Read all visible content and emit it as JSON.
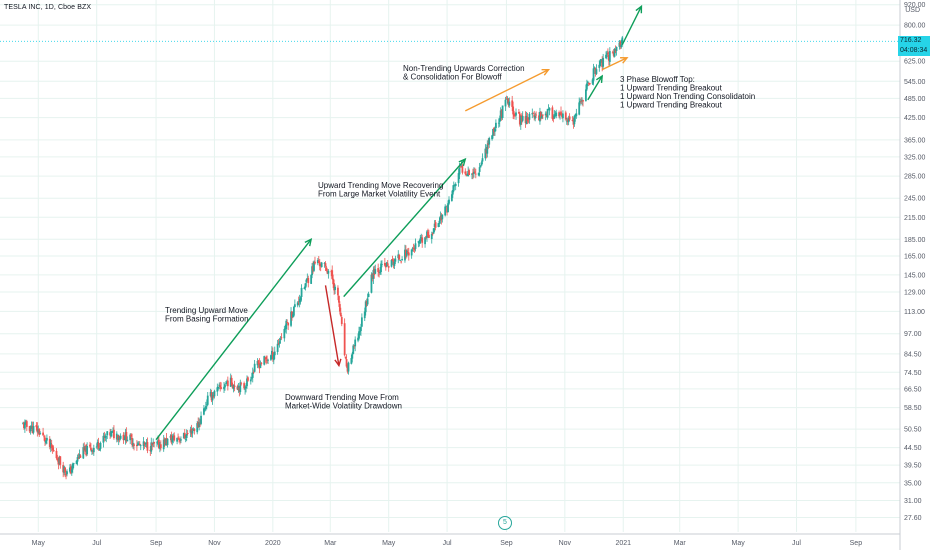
{
  "header": {
    "title": "TESLA INC, 1D, Cboe BZX",
    "currency": "USD"
  },
  "price_tags": {
    "last_price": "716.32",
    "countdown": "04:08:34"
  },
  "event_marker": {
    "label": "5"
  },
  "colors": {
    "up": "#26a69a",
    "down": "#ef5350",
    "green_arrow": "#0e9e5a",
    "red_arrow": "#c62828",
    "orange_arrow": "#f59b2f",
    "grid": "#e6f3ef",
    "tag": "#26d4e8"
  },
  "chart_data": {
    "type": "candlestick",
    "y_scale": "log",
    "ylim": [
      25,
      950
    ],
    "y_ticks": [
      "920.00",
      "800.00",
      "716.32",
      "625.00",
      "545.00",
      "485.00",
      "425.00",
      "365.00",
      "325.00",
      "285.00",
      "245.00",
      "215.00",
      "185.00",
      "165.00",
      "145.00",
      "129.00",
      "113.00",
      "97.00",
      "84.50",
      "74.50",
      "66.50",
      "58.50",
      "50.50",
      "44.50",
      "39.50",
      "35.00",
      "31.00",
      "27.60"
    ],
    "x_ticks": [
      "May",
      "Jul",
      "Sep",
      "Nov",
      "2020",
      "Mar",
      "May",
      "Jul",
      "Sep",
      "Nov",
      "2021",
      "Mar",
      "May",
      "Jul",
      "Sep"
    ],
    "price_path": [
      {
        "date": "2019-04-15",
        "close": 52
      },
      {
        "date": "2019-05-01",
        "close": 50
      },
      {
        "date": "2019-05-15",
        "close": 44
      },
      {
        "date": "2019-06-01",
        "close": 37
      },
      {
        "date": "2019-06-15",
        "close": 43
      },
      {
        "date": "2019-07-01",
        "close": 45
      },
      {
        "date": "2019-07-15",
        "close": 49
      },
      {
        "date": "2019-08-01",
        "close": 48
      },
      {
        "date": "2019-08-15",
        "close": 45
      },
      {
        "date": "2019-09-01",
        "close": 45
      },
      {
        "date": "2019-09-15",
        "close": 47
      },
      {
        "date": "2019-10-01",
        "close": 48
      },
      {
        "date": "2019-10-15",
        "close": 52
      },
      {
        "date": "2019-10-25",
        "close": 62
      },
      {
        "date": "2019-11-15",
        "close": 70
      },
      {
        "date": "2019-12-01",
        "close": 67
      },
      {
        "date": "2019-12-15",
        "close": 78
      },
      {
        "date": "2020-01-01",
        "close": 84
      },
      {
        "date": "2020-01-15",
        "close": 103
      },
      {
        "date": "2020-02-01",
        "close": 130
      },
      {
        "date": "2020-02-15",
        "close": 160
      },
      {
        "date": "2020-03-01",
        "close": 148
      },
      {
        "date": "2020-03-10",
        "close": 120
      },
      {
        "date": "2020-03-18",
        "close": 75
      },
      {
        "date": "2020-04-01",
        "close": 100
      },
      {
        "date": "2020-04-15",
        "close": 150
      },
      {
        "date": "2020-05-01",
        "close": 155
      },
      {
        "date": "2020-05-15",
        "close": 165
      },
      {
        "date": "2020-06-01",
        "close": 178
      },
      {
        "date": "2020-06-15",
        "close": 195
      },
      {
        "date": "2020-07-01",
        "close": 230
      },
      {
        "date": "2020-07-15",
        "close": 300
      },
      {
        "date": "2020-08-01",
        "close": 290
      },
      {
        "date": "2020-08-15",
        "close": 370
      },
      {
        "date": "2020-09-01",
        "close": 475
      },
      {
        "date": "2020-09-15",
        "close": 420
      },
      {
        "date": "2020-10-01",
        "close": 430
      },
      {
        "date": "2020-10-15",
        "close": 440
      },
      {
        "date": "2020-11-01",
        "close": 420
      },
      {
        "date": "2020-11-10",
        "close": 410
      },
      {
        "date": "2020-11-20",
        "close": 490
      },
      {
        "date": "2020-12-01",
        "close": 580
      },
      {
        "date": "2020-12-10",
        "close": 620
      },
      {
        "date": "2020-12-20",
        "close": 660
      },
      {
        "date": "2020-12-31",
        "close": 716.32
      }
    ],
    "annotations": [
      {
        "id": "basing",
        "lines": [
          "Trending Upward Move",
          "From Basing Formation"
        ]
      },
      {
        "id": "drawdown",
        "lines": [
          "Downward Trending Move From",
          "Market-Wide Volatility Drawdown"
        ]
      },
      {
        "id": "recovery",
        "lines": [
          "Upward Trending Move Recovering",
          "From Large Market Volatility Event"
        ]
      },
      {
        "id": "correction",
        "lines": [
          "Non-Trending Upwards Correction",
          "& Consolidation For Blowoff"
        ]
      },
      {
        "id": "blowoff",
        "lines": [
          "3 Phase Blowoff Top:",
          "1 Upward Trending Breakout",
          "1 Upward Non Trending Consolidatoin",
          "1 Upward Trending Breakout"
        ]
      }
    ],
    "arrows": [
      {
        "name": "basing-arrow",
        "color": "green",
        "from": {
          "date": "2019-09-01",
          "price": 47
        },
        "to": {
          "date": "2020-02-10",
          "price": 185
        }
      },
      {
        "name": "drawdown-arrow",
        "color": "red",
        "from": {
          "date": "2020-02-25",
          "price": 135
        },
        "to": {
          "date": "2020-03-10",
          "price": 78
        }
      },
      {
        "name": "recovery-arrow",
        "color": "green",
        "from": {
          "date": "2020-03-15",
          "price": 125
        },
        "to": {
          "date": "2020-07-20",
          "price": 320
        }
      },
      {
        "name": "correction-arrow",
        "color": "orange",
        "from": {
          "date": "2020-07-20",
          "price": 445
        },
        "to": {
          "date": "2020-10-15",
          "price": 590
        }
      },
      {
        "name": "blowoff-arrow-1",
        "color": "green",
        "from": {
          "date": "2020-11-25",
          "price": 480
        },
        "to": {
          "date": "2020-12-10",
          "price": 565
        }
      },
      {
        "name": "blowoff-arrow-2",
        "color": "orange",
        "from": {
          "date": "2020-12-10",
          "price": 590
        },
        "to": {
          "date": "2021-01-05",
          "price": 640
        }
      },
      {
        "name": "blowoff-arrow-3",
        "color": "green",
        "from": {
          "date": "2020-12-31",
          "price": 700
        },
        "to": {
          "date": "2021-01-20",
          "price": 910
        }
      }
    ]
  }
}
